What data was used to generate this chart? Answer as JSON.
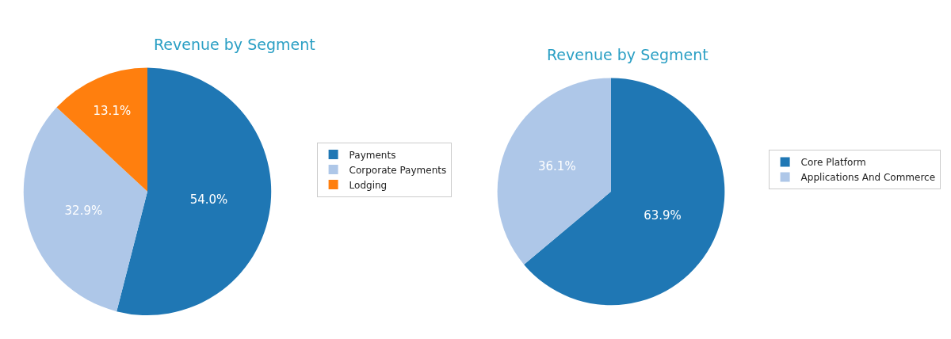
{
  "chart_data": [
    {
      "type": "pie",
      "title": "Revenue by Segment",
      "categories": [
        "Payments",
        "Corporate Payments",
        "Lodging"
      ],
      "values": [
        54.0,
        32.9,
        13.1
      ],
      "colors": [
        "#1f77b4",
        "#aec7e8",
        "#ff7f0e"
      ],
      "value_labels": [
        "54.0%",
        "32.9%",
        "13.1%"
      ],
      "legend": "right"
    },
    {
      "type": "pie",
      "title": "Revenue by Segment",
      "categories": [
        "Core Platform",
        "Applications And Commerce"
      ],
      "values": [
        63.9,
        36.1
      ],
      "colors": [
        "#1f77b4",
        "#aec7e8"
      ],
      "value_labels": [
        "63.9%",
        "36.1%"
      ],
      "legend": "right"
    }
  ]
}
